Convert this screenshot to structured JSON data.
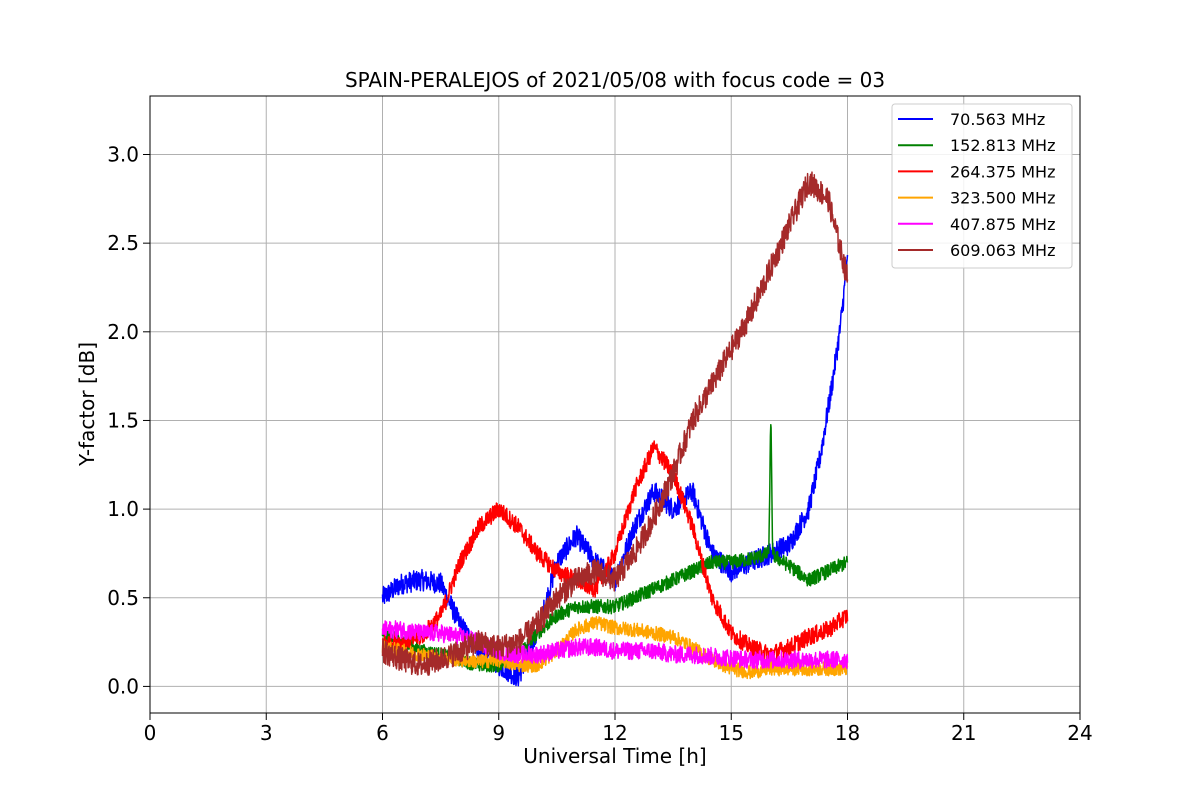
{
  "chart_data": {
    "type": "line",
    "title": "SPAIN-PERALEJOS of 2021/05/08 with focus code = 03",
    "xlabel": "Universal Time [h]",
    "ylabel": "Y-factor [dB]",
    "xlim": [
      0,
      24
    ],
    "ylim": [
      -0.15,
      3.33
    ],
    "xticks": [
      0,
      3,
      6,
      9,
      12,
      15,
      18,
      21,
      24
    ],
    "xtick_labels": [
      "0",
      "3",
      "6",
      "9",
      "12",
      "15",
      "18",
      "21",
      "24"
    ],
    "yticks": [
      0.0,
      0.5,
      1.0,
      1.5,
      2.0,
      2.5,
      3.0
    ],
    "ytick_labels": [
      "0.0",
      "0.5",
      "1.0",
      "1.5",
      "2.0",
      "2.5",
      "3.0"
    ],
    "grid": true,
    "legend_position": "top-right",
    "series": [
      {
        "name": " 70.563 MHz",
        "color": "#0000ff",
        "noise": 0.06,
        "x": [
          6,
          6.5,
          7,
          7.5,
          8,
          8.5,
          9,
          9.5,
          10,
          10.5,
          11,
          11.5,
          12,
          12.5,
          13,
          13.5,
          14,
          14.5,
          15,
          15.5,
          16,
          16.5,
          17,
          17.3,
          17.6,
          17.8,
          18
        ],
        "y": [
          0.5,
          0.58,
          0.6,
          0.58,
          0.35,
          0.2,
          0.12,
          0.05,
          0.3,
          0.7,
          0.85,
          0.7,
          0.6,
          0.9,
          1.1,
          1.0,
          1.1,
          0.75,
          0.65,
          0.7,
          0.75,
          0.8,
          1.0,
          1.3,
          1.7,
          2.0,
          2.4
        ]
      },
      {
        "name": "152.813 MHz",
        "color": "#008000",
        "noise": 0.04,
        "x": [
          6,
          6.5,
          7,
          7.5,
          8,
          8.5,
          9,
          9.5,
          10,
          10.5,
          11,
          11.5,
          12,
          12.5,
          13,
          13.5,
          14,
          14.5,
          15,
          15.5,
          16,
          16.5,
          17,
          17.5,
          18
        ],
        "y": [
          0.3,
          0.25,
          0.2,
          0.18,
          0.15,
          0.12,
          0.12,
          0.18,
          0.3,
          0.4,
          0.45,
          0.45,
          0.45,
          0.5,
          0.55,
          0.6,
          0.65,
          0.7,
          0.7,
          0.72,
          0.75,
          0.68,
          0.6,
          0.65,
          0.7
        ]
      },
      {
        "name": "264.375 MHz",
        "color": "#ff0000",
        "noise": 0.05,
        "x": [
          6,
          6.5,
          7,
          7.5,
          8,
          8.5,
          9,
          9.5,
          10,
          10.5,
          11,
          11.5,
          12,
          12.5,
          13,
          13.5,
          14,
          14.5,
          15,
          15.5,
          16,
          16.5,
          17,
          17.5,
          18
        ],
        "y": [
          0.25,
          0.25,
          0.28,
          0.4,
          0.7,
          0.9,
          1.0,
          0.9,
          0.75,
          0.65,
          0.6,
          0.55,
          0.75,
          1.1,
          1.35,
          1.2,
          0.9,
          0.5,
          0.3,
          0.22,
          0.18,
          0.22,
          0.28,
          0.32,
          0.4
        ]
      },
      {
        "name": "323.500 MHz",
        "color": "#ffa500",
        "noise": 0.04,
        "x": [
          6,
          6.5,
          7,
          7.5,
          8,
          8.5,
          9,
          9.5,
          10,
          10.5,
          11,
          11.5,
          12,
          12.5,
          13,
          13.5,
          14,
          14.5,
          15,
          15.5,
          16,
          16.5,
          17,
          17.5,
          18
        ],
        "y": [
          0.22,
          0.2,
          0.18,
          0.16,
          0.15,
          0.14,
          0.15,
          0.12,
          0.12,
          0.2,
          0.32,
          0.36,
          0.33,
          0.32,
          0.3,
          0.28,
          0.22,
          0.15,
          0.1,
          0.08,
          0.1,
          0.1,
          0.1,
          0.1,
          0.1
        ]
      },
      {
        "name": "407.875 MHz",
        "color": "#ff00ff",
        "noise": 0.05,
        "x": [
          6,
          6.5,
          7,
          7.5,
          8,
          8.5,
          9,
          9.5,
          10,
          10.5,
          11,
          11.5,
          12,
          12.5,
          13,
          13.5,
          14,
          14.5,
          15,
          15.5,
          16,
          16.5,
          17,
          17.5,
          18
        ],
        "y": [
          0.32,
          0.32,
          0.3,
          0.3,
          0.28,
          0.25,
          0.2,
          0.18,
          0.18,
          0.2,
          0.22,
          0.22,
          0.2,
          0.2,
          0.2,
          0.18,
          0.18,
          0.17,
          0.16,
          0.15,
          0.15,
          0.15,
          0.15,
          0.15,
          0.15
        ]
      },
      {
        "name": "609.063 MHz",
        "color": "#a52a2a",
        "noise": 0.07,
        "x": [
          6,
          6.5,
          7,
          7.5,
          8,
          8.5,
          9,
          9.5,
          10,
          10.5,
          11,
          11.5,
          12,
          12.5,
          13,
          13.5,
          14,
          14.5,
          15,
          15.5,
          16,
          16.5,
          17,
          17.5,
          18
        ],
        "y": [
          0.2,
          0.15,
          0.12,
          0.15,
          0.2,
          0.25,
          0.22,
          0.25,
          0.35,
          0.5,
          0.6,
          0.65,
          0.6,
          0.75,
          0.95,
          1.2,
          1.5,
          1.7,
          1.9,
          2.1,
          2.35,
          2.6,
          2.85,
          2.75,
          2.3
        ]
      }
    ]
  }
}
